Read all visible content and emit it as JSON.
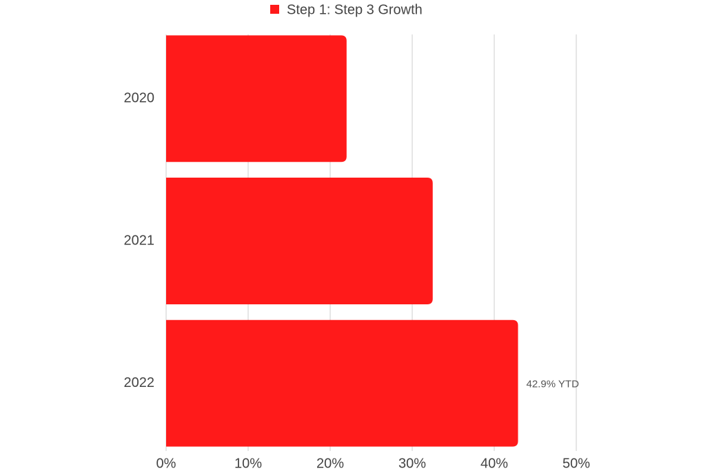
{
  "chart_data": {
    "type": "bar",
    "orientation": "horizontal",
    "categories": [
      "2020",
      "2021",
      "2022"
    ],
    "series": [
      {
        "name": "Step 1: Step 3 Growth",
        "color": "#ff1a1a",
        "values": [
          22,
          32.5,
          42.9
        ],
        "value_labels": [
          null,
          null,
          "42.9% YTD"
        ]
      }
    ],
    "xlim": [
      0,
      50
    ],
    "xticks": [
      {
        "value": 0,
        "label": "0%"
      },
      {
        "value": 10,
        "label": "10%"
      },
      {
        "value": 20,
        "label": "20%"
      },
      {
        "value": 30,
        "label": "30%"
      },
      {
        "value": 40,
        "label": "40%"
      },
      {
        "value": 50,
        "label": "50%"
      }
    ],
    "grid": true,
    "legend": "top"
  }
}
